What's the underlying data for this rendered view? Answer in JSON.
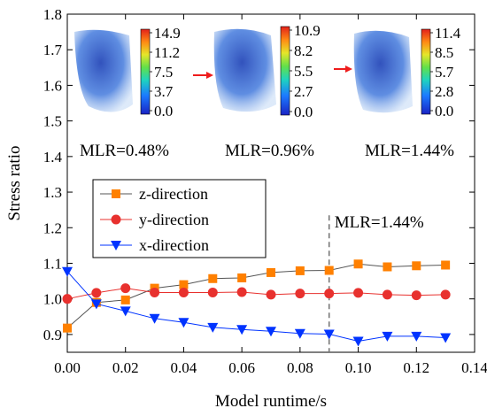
{
  "chart_data": {
    "type": "line",
    "title": "",
    "xlabel": "Model runtime/s",
    "ylabel": "Stress ratio",
    "xlim": [
      0,
      0.14
    ],
    "ylim": [
      0.85,
      1.8
    ],
    "xticks": [
      0.0,
      0.02,
      0.04,
      0.06,
      0.08,
      0.1,
      0.12,
      0.14
    ],
    "xtick_labels": [
      "0.00",
      "0.02",
      "0.04",
      "0.06",
      "0.08",
      "0.10",
      "0.12",
      "0.14"
    ],
    "yticks": [
      0.9,
      1.0,
      1.1,
      1.2,
      1.3,
      1.4,
      1.5,
      1.6,
      1.7,
      1.8
    ],
    "ytick_labels": [
      "0.9",
      "1.0",
      "1.1",
      "1.2",
      "1.3",
      "1.4",
      "1.5",
      "1.6",
      "1.7",
      "1.8"
    ],
    "grid": false,
    "legend_position": "center-left",
    "x": [
      0.0,
      0.01,
      0.02,
      0.03,
      0.04,
      0.05,
      0.06,
      0.07,
      0.08,
      0.09,
      0.1,
      0.11,
      0.12,
      0.13
    ],
    "series": [
      {
        "name": "z-direction",
        "color": "#ff8000",
        "marker": "square",
        "values": [
          0.918,
          0.99,
          0.997,
          1.03,
          1.04,
          1.057,
          1.059,
          1.074,
          1.079,
          1.08,
          1.098,
          1.09,
          1.093,
          1.095
        ]
      },
      {
        "name": "y-direction",
        "color": "#e8312e",
        "marker": "circle",
        "values": [
          1.0,
          1.017,
          1.03,
          1.018,
          1.018,
          1.018,
          1.019,
          1.012,
          1.015,
          1.015,
          1.017,
          1.012,
          1.01,
          1.012
        ]
      },
      {
        "name": "x-direction",
        "color": "#0033ff",
        "marker": "triangle-down",
        "values": [
          1.077,
          0.986,
          0.966,
          0.945,
          0.934,
          0.92,
          0.914,
          0.909,
          0.903,
          0.901,
          0.881,
          0.895,
          0.895,
          0.891
        ]
      }
    ],
    "reference_line": {
      "x": 0.09,
      "y_from": 0.85,
      "y_to": 1.235,
      "label": "MLR=1.44%",
      "style": "dashed"
    },
    "insets": [
      {
        "mlr_label": "MLR=0.48%",
        "colorbar_ticks": [
          "14.9",
          "11.2",
          "7.5",
          "3.7",
          "0.0"
        ]
      },
      {
        "mlr_label": "MLR=0.96%",
        "colorbar_ticks": [
          "10.9",
          "8.2",
          "5.5",
          "2.7",
          "0.0"
        ]
      },
      {
        "mlr_label": "MLR=1.44%",
        "colorbar_ticks": [
          "11.4",
          "8.5",
          "5.7",
          "2.8",
          "0.0"
        ]
      }
    ]
  }
}
